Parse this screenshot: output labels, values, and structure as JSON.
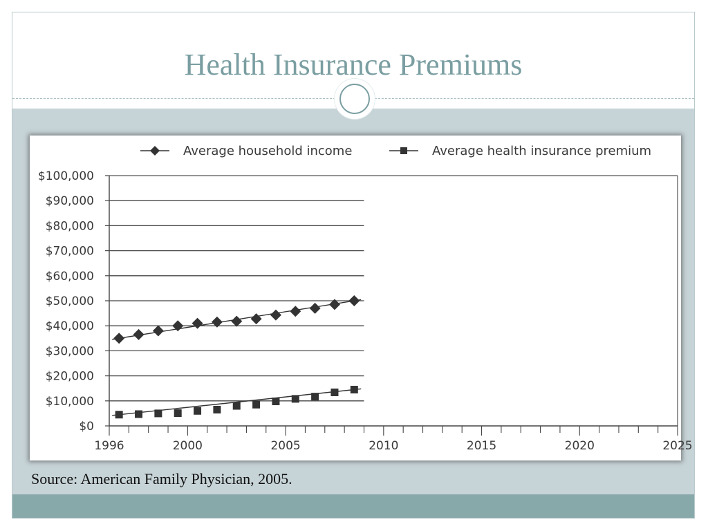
{
  "slide": {
    "title": "Health Insurance Premiums",
    "source": "Source: American Family Physician, 2005."
  },
  "colors": {
    "title": "#7a9ea1",
    "band": "#c6d3d7",
    "footer": "#88a9aa",
    "series": "#333333"
  },
  "chart_data": {
    "type": "line",
    "title": "",
    "xlabel": "",
    "ylabel": "",
    "xlim": [
      1996,
      2025
    ],
    "ylim": [
      0,
      100000
    ],
    "x_ticks": [
      1996,
      2000,
      2005,
      2010,
      2015,
      2020,
      2025
    ],
    "y_ticks": [
      0,
      10000,
      20000,
      30000,
      40000,
      50000,
      60000,
      70000,
      80000,
      90000,
      100000
    ],
    "y_tick_labels": [
      "$0",
      "$10,000",
      "$20,000",
      "$30,000",
      "$40,000",
      "$50,000",
      "$60,000",
      "$70,000",
      "$80,000",
      "$90,000",
      "$100,000"
    ],
    "grid": "horizontal, 1996–2009 only",
    "legend_position": "top",
    "x": [
      1996.5,
      1997.5,
      1998.5,
      1999.5,
      2000.5,
      2001.5,
      2002.5,
      2003.5,
      2004.5,
      2005.5,
      2006.5,
      2007.5,
      2008.5
    ],
    "series": [
      {
        "name": "Average household income",
        "marker": "diamond",
        "values": [
          35000,
          36500,
          38000,
          40000,
          41000,
          41500,
          41800,
          42800,
          44300,
          45800,
          47000,
          48500,
          50000
        ]
      },
      {
        "name": "Average health insurance premium",
        "marker": "square",
        "values": [
          4500,
          4700,
          5000,
          5100,
          6000,
          6500,
          8000,
          8500,
          9800,
          10800,
          11700,
          13400,
          14500
        ]
      }
    ]
  }
}
